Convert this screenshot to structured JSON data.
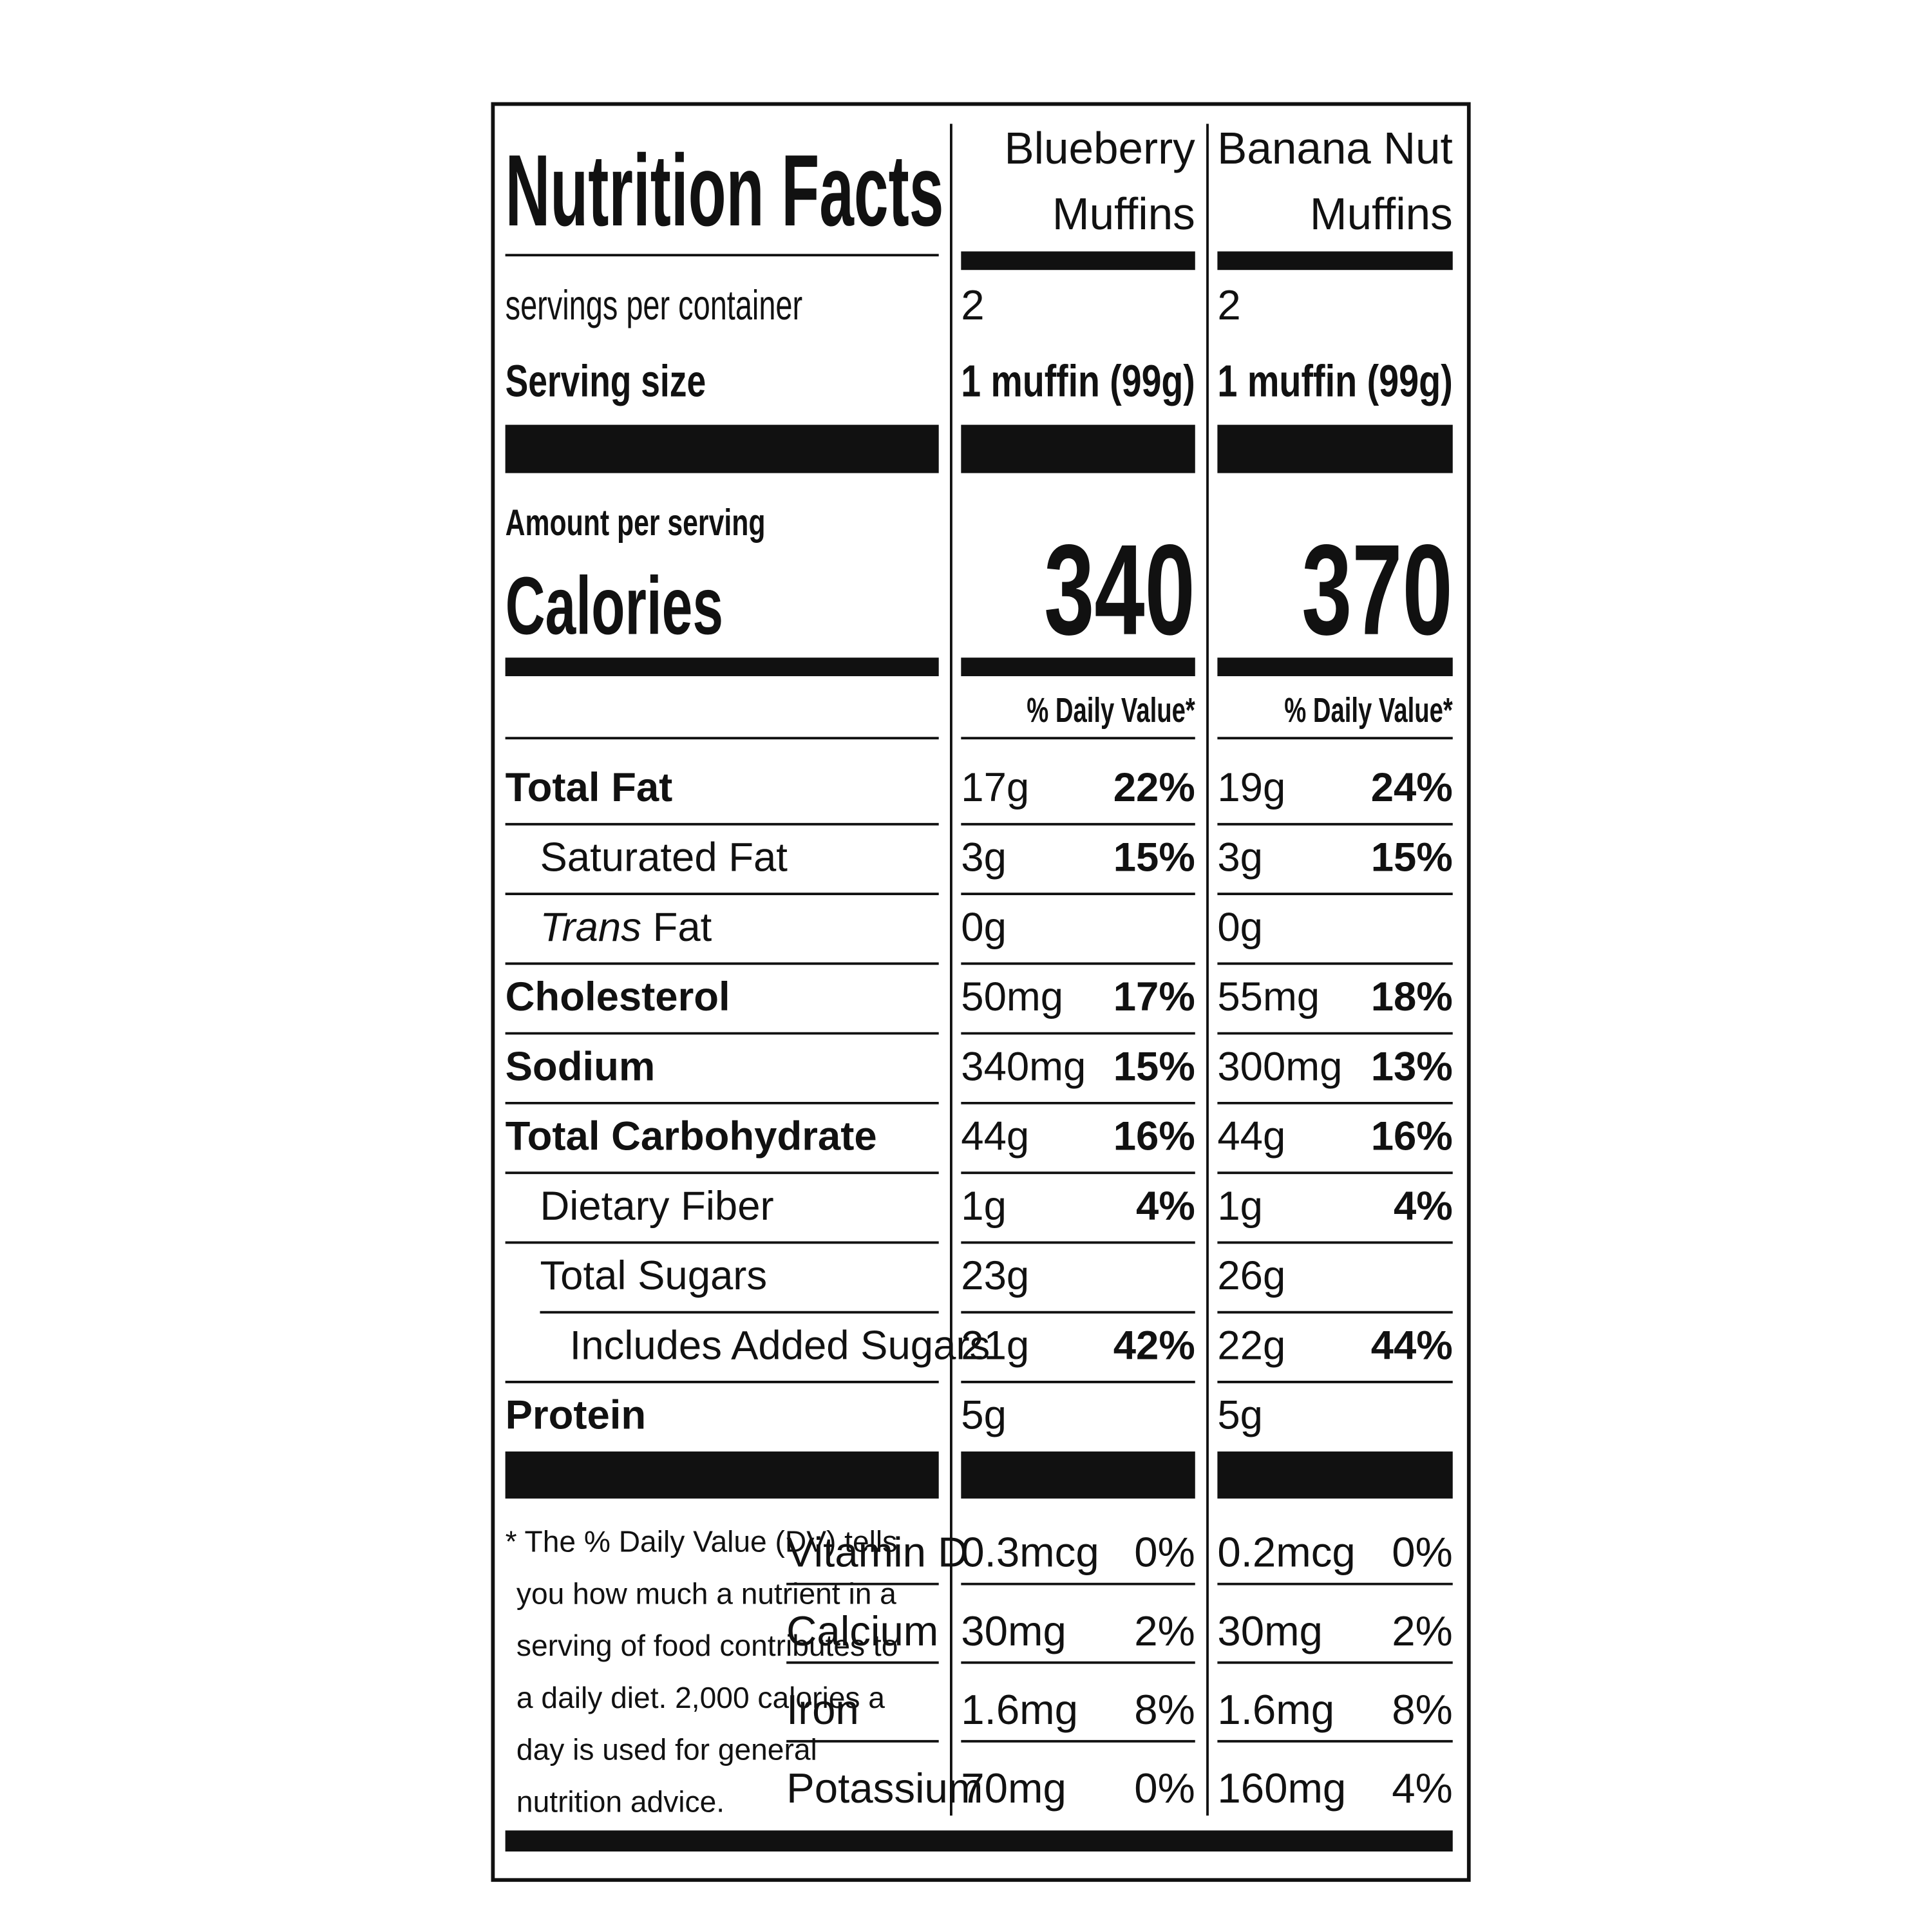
{
  "title": "Nutrition Facts",
  "labels": {
    "servings": "servings per container",
    "serving_size": "Serving size",
    "amount": "Amount per serving",
    "calories": "Calories"
  },
  "products": [
    {
      "name_lines": [
        "Blueberry",
        "Muffins"
      ],
      "servings": "2",
      "serving_size": "1 muffin  (99g)",
      "calories": "340",
      "dv_header": "% Daily Value*"
    },
    {
      "name_lines": [
        "Banana Nut",
        "Muffins"
      ],
      "servings": "2",
      "serving_size": "1 muffin  (99g)",
      "calories": "370",
      "dv_header": "% Daily Value*"
    }
  ],
  "nutrients": [
    {
      "name": "Total Fat",
      "values": [
        {
          "amount": "17g",
          "dv": "22%"
        },
        {
          "amount": "19g",
          "dv": "24%"
        }
      ],
      "sub": [
        {
          "name": "Saturated Fat",
          "values": [
            {
              "amount": "3g",
              "dv": "15%"
            },
            {
              "amount": "3g",
              "dv": "15%"
            }
          ]
        },
        {
          "name_italic": "Trans",
          "name": "Fat",
          "values": [
            {
              "amount": "0g"
            },
            {
              "amount": "0g"
            }
          ]
        }
      ]
    },
    {
      "name": "Cholesterol",
      "values": [
        {
          "amount": "50mg",
          "dv": "17%"
        },
        {
          "amount": "55mg",
          "dv": "18%"
        }
      ]
    },
    {
      "name": "Sodium",
      "values": [
        {
          "amount": "340mg",
          "dv": "15%"
        },
        {
          "amount": "300mg",
          "dv": "13%"
        }
      ]
    },
    {
      "name": "Total Carbohydrate",
      "values": [
        {
          "amount": "44g",
          "dv": "16%"
        },
        {
          "amount": "44g",
          "dv": "16%"
        }
      ],
      "sub": [
        {
          "name": "Dietary Fiber",
          "values": [
            {
              "amount": "1g",
              "dv": "4%"
            },
            {
              "amount": "1g",
              "dv": "4%"
            }
          ]
        },
        {
          "name": "Total Sugars",
          "values": [
            {
              "amount": "23g"
            },
            {
              "amount": "26g"
            }
          ],
          "sub": [
            {
              "name": "Includes Added Sugars",
              "values": [
                {
                  "amount": "21g",
                  "dv": "42%"
                },
                {
                  "amount": "22g",
                  "dv": "44%"
                }
              ]
            }
          ]
        }
      ]
    },
    {
      "name": "Protein",
      "values": [
        {
          "amount": "5g"
        },
        {
          "amount": "5g"
        }
      ]
    }
  ],
  "footnote": [
    "* The % Daily Value (DV) tells",
    "you how much a nutrient in a",
    "serving of food contributes to",
    "a daily diet. 2,000 calories a",
    "day is used for general",
    "nutrition advice."
  ],
  "vitamins": [
    {
      "name": "Vitamin D",
      "values": [
        {
          "amount": "0.3mcg",
          "dv": "0%"
        },
        {
          "amount": "0.2mcg",
          "dv": "0%"
        }
      ]
    },
    {
      "name": "Calcium",
      "values": [
        {
          "amount": "30mg",
          "dv": "2%"
        },
        {
          "amount": "30mg",
          "dv": "2%"
        }
      ]
    },
    {
      "name": "Iron",
      "values": [
        {
          "amount": "1.6mg",
          "dv": "8%"
        },
        {
          "amount": "1.6mg",
          "dv": "8%"
        }
      ]
    },
    {
      "name": "Potassium",
      "values": [
        {
          "amount": "70mg",
          "dv": "0%"
        },
        {
          "amount": "160mg",
          "dv": "4%"
        }
      ]
    }
  ]
}
